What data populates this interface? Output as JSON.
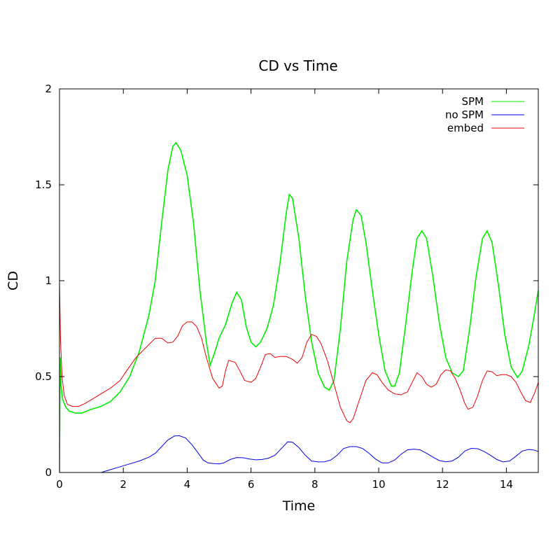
{
  "chart_data": {
    "type": "line",
    "title": "CD vs Time",
    "xlabel": "Time",
    "ylabel": "CD",
    "xlim": [
      0,
      15
    ],
    "ylim": [
      0,
      2
    ],
    "xticks": [
      0,
      2,
      4,
      6,
      8,
      10,
      12,
      14
    ],
    "yticks": [
      0,
      0.5,
      1,
      1.5,
      2
    ],
    "xtick_labels": [
      "0",
      "2",
      "4",
      "6",
      "8",
      "10",
      "12",
      "14"
    ],
    "ytick_labels": [
      "0",
      "0.5",
      "1",
      "1.5",
      "2"
    ],
    "grid": false,
    "legend_position": "top-right",
    "series": [
      {
        "name": "SPM",
        "color": "#00ee00",
        "points": [
          [
            0,
            0
          ],
          [
            0.02,
            0.6
          ],
          [
            0.05,
            0.45
          ],
          [
            0.1,
            0.38
          ],
          [
            0.2,
            0.34
          ],
          [
            0.3,
            0.32
          ],
          [
            0.5,
            0.31
          ],
          [
            0.7,
            0.31
          ],
          [
            1.0,
            0.33
          ],
          [
            1.3,
            0.345
          ],
          [
            1.6,
            0.37
          ],
          [
            1.9,
            0.42
          ],
          [
            2.2,
            0.5
          ],
          [
            2.5,
            0.63
          ],
          [
            2.8,
            0.82
          ],
          [
            3.0,
            1.0
          ],
          [
            3.2,
            1.3
          ],
          [
            3.4,
            1.58
          ],
          [
            3.55,
            1.7
          ],
          [
            3.65,
            1.72
          ],
          [
            3.8,
            1.68
          ],
          [
            4.0,
            1.55
          ],
          [
            4.2,
            1.3
          ],
          [
            4.4,
            0.95
          ],
          [
            4.6,
            0.68
          ],
          [
            4.72,
            0.56
          ],
          [
            4.85,
            0.62
          ],
          [
            5.0,
            0.7
          ],
          [
            5.2,
            0.77
          ],
          [
            5.4,
            0.88
          ],
          [
            5.55,
            0.94
          ],
          [
            5.7,
            0.9
          ],
          [
            5.85,
            0.76
          ],
          [
            6.0,
            0.68
          ],
          [
            6.15,
            0.655
          ],
          [
            6.3,
            0.68
          ],
          [
            6.5,
            0.75
          ],
          [
            6.7,
            0.87
          ],
          [
            6.9,
            1.08
          ],
          [
            7.1,
            1.35
          ],
          [
            7.2,
            1.45
          ],
          [
            7.3,
            1.43
          ],
          [
            7.5,
            1.22
          ],
          [
            7.7,
            0.92
          ],
          [
            7.9,
            0.68
          ],
          [
            8.1,
            0.52
          ],
          [
            8.3,
            0.445
          ],
          [
            8.45,
            0.43
          ],
          [
            8.6,
            0.48
          ],
          [
            8.8,
            0.75
          ],
          [
            9.0,
            1.1
          ],
          [
            9.2,
            1.32
          ],
          [
            9.3,
            1.37
          ],
          [
            9.45,
            1.34
          ],
          [
            9.6,
            1.2
          ],
          [
            9.8,
            0.95
          ],
          [
            10.0,
            0.72
          ],
          [
            10.2,
            0.53
          ],
          [
            10.4,
            0.45
          ],
          [
            10.5,
            0.45
          ],
          [
            10.65,
            0.52
          ],
          [
            10.85,
            0.78
          ],
          [
            11.05,
            1.05
          ],
          [
            11.2,
            1.22
          ],
          [
            11.35,
            1.26
          ],
          [
            11.5,
            1.22
          ],
          [
            11.7,
            1.02
          ],
          [
            11.9,
            0.78
          ],
          [
            12.1,
            0.6
          ],
          [
            12.3,
            0.52
          ],
          [
            12.5,
            0.5
          ],
          [
            12.65,
            0.53
          ],
          [
            12.85,
            0.75
          ],
          [
            13.05,
            1.02
          ],
          [
            13.25,
            1.22
          ],
          [
            13.4,
            1.26
          ],
          [
            13.55,
            1.2
          ],
          [
            13.75,
            0.98
          ],
          [
            13.95,
            0.72
          ],
          [
            14.15,
            0.55
          ],
          [
            14.35,
            0.495
          ],
          [
            14.5,
            0.53
          ],
          [
            14.7,
            0.66
          ],
          [
            14.85,
            0.8
          ],
          [
            15.0,
            0.95
          ]
        ]
      },
      {
        "name": "no SPM",
        "color": "#0000ee",
        "points": [
          [
            1.3,
            0
          ],
          [
            1.6,
            0.015
          ],
          [
            1.9,
            0.03
          ],
          [
            2.2,
            0.045
          ],
          [
            2.5,
            0.06
          ],
          [
            2.8,
            0.08
          ],
          [
            3.0,
            0.1
          ],
          [
            3.2,
            0.135
          ],
          [
            3.4,
            0.17
          ],
          [
            3.6,
            0.19
          ],
          [
            3.75,
            0.192
          ],
          [
            3.95,
            0.18
          ],
          [
            4.15,
            0.145
          ],
          [
            4.35,
            0.1
          ],
          [
            4.5,
            0.065
          ],
          [
            4.65,
            0.05
          ],
          [
            4.8,
            0.047
          ],
          [
            5.0,
            0.045
          ],
          [
            5.15,
            0.05
          ],
          [
            5.35,
            0.068
          ],
          [
            5.55,
            0.078
          ],
          [
            5.75,
            0.077
          ],
          [
            5.95,
            0.07
          ],
          [
            6.15,
            0.066
          ],
          [
            6.35,
            0.068
          ],
          [
            6.55,
            0.075
          ],
          [
            6.75,
            0.09
          ],
          [
            6.95,
            0.125
          ],
          [
            7.15,
            0.16
          ],
          [
            7.3,
            0.158
          ],
          [
            7.5,
            0.13
          ],
          [
            7.7,
            0.09
          ],
          [
            7.9,
            0.06
          ],
          [
            8.1,
            0.055
          ],
          [
            8.3,
            0.056
          ],
          [
            8.5,
            0.065
          ],
          [
            8.7,
            0.09
          ],
          [
            8.9,
            0.125
          ],
          [
            9.1,
            0.135
          ],
          [
            9.3,
            0.135
          ],
          [
            9.5,
            0.125
          ],
          [
            9.7,
            0.1
          ],
          [
            9.9,
            0.07
          ],
          [
            10.1,
            0.05
          ],
          [
            10.3,
            0.05
          ],
          [
            10.5,
            0.065
          ],
          [
            10.7,
            0.095
          ],
          [
            10.9,
            0.118
          ],
          [
            11.1,
            0.122
          ],
          [
            11.3,
            0.118
          ],
          [
            11.5,
            0.1
          ],
          [
            11.7,
            0.08
          ],
          [
            11.9,
            0.062
          ],
          [
            12.1,
            0.056
          ],
          [
            12.3,
            0.06
          ],
          [
            12.5,
            0.08
          ],
          [
            12.7,
            0.112
          ],
          [
            12.9,
            0.126
          ],
          [
            13.1,
            0.124
          ],
          [
            13.3,
            0.11
          ],
          [
            13.5,
            0.09
          ],
          [
            13.7,
            0.068
          ],
          [
            13.9,
            0.055
          ],
          [
            14.1,
            0.06
          ],
          [
            14.3,
            0.085
          ],
          [
            14.5,
            0.112
          ],
          [
            14.7,
            0.12
          ],
          [
            14.85,
            0.118
          ],
          [
            15.0,
            0.11
          ]
        ]
      },
      {
        "name": "embed",
        "color": "#ee0000",
        "points": [
          [
            0,
            1.0
          ],
          [
            0.03,
            0.7
          ],
          [
            0.08,
            0.5
          ],
          [
            0.15,
            0.4
          ],
          [
            0.25,
            0.355
          ],
          [
            0.4,
            0.345
          ],
          [
            0.6,
            0.345
          ],
          [
            0.8,
            0.36
          ],
          [
            1.0,
            0.38
          ],
          [
            1.3,
            0.41
          ],
          [
            1.6,
            0.44
          ],
          [
            1.9,
            0.48
          ],
          [
            2.1,
            0.53
          ],
          [
            2.4,
            0.6
          ],
          [
            2.7,
            0.65
          ],
          [
            3.0,
            0.7
          ],
          [
            3.2,
            0.7
          ],
          [
            3.4,
            0.675
          ],
          [
            3.55,
            0.68
          ],
          [
            3.7,
            0.71
          ],
          [
            3.85,
            0.765
          ],
          [
            4.0,
            0.785
          ],
          [
            4.15,
            0.785
          ],
          [
            4.3,
            0.76
          ],
          [
            4.45,
            0.7
          ],
          [
            4.6,
            0.6
          ],
          [
            4.8,
            0.49
          ],
          [
            5.0,
            0.44
          ],
          [
            5.1,
            0.45
          ],
          [
            5.2,
            0.53
          ],
          [
            5.3,
            0.585
          ],
          [
            5.5,
            0.575
          ],
          [
            5.65,
            0.53
          ],
          [
            5.8,
            0.48
          ],
          [
            6.0,
            0.47
          ],
          [
            6.15,
            0.49
          ],
          [
            6.3,
            0.55
          ],
          [
            6.45,
            0.615
          ],
          [
            6.6,
            0.62
          ],
          [
            6.75,
            0.6
          ],
          [
            6.9,
            0.605
          ],
          [
            7.1,
            0.605
          ],
          [
            7.3,
            0.59
          ],
          [
            7.45,
            0.57
          ],
          [
            7.6,
            0.6
          ],
          [
            7.75,
            0.68
          ],
          [
            7.9,
            0.72
          ],
          [
            8.05,
            0.71
          ],
          [
            8.2,
            0.67
          ],
          [
            8.4,
            0.58
          ],
          [
            8.6,
            0.46
          ],
          [
            8.8,
            0.34
          ],
          [
            9.0,
            0.27
          ],
          [
            9.1,
            0.26
          ],
          [
            9.2,
            0.28
          ],
          [
            9.4,
            0.38
          ],
          [
            9.6,
            0.48
          ],
          [
            9.8,
            0.52
          ],
          [
            9.95,
            0.51
          ],
          [
            10.1,
            0.47
          ],
          [
            10.3,
            0.43
          ],
          [
            10.5,
            0.41
          ],
          [
            10.7,
            0.405
          ],
          [
            10.9,
            0.42
          ],
          [
            11.05,
            0.47
          ],
          [
            11.2,
            0.52
          ],
          [
            11.35,
            0.5
          ],
          [
            11.5,
            0.46
          ],
          [
            11.65,
            0.445
          ],
          [
            11.8,
            0.46
          ],
          [
            11.95,
            0.51
          ],
          [
            12.1,
            0.535
          ],
          [
            12.25,
            0.53
          ],
          [
            12.4,
            0.49
          ],
          [
            12.55,
            0.43
          ],
          [
            12.7,
            0.36
          ],
          [
            12.8,
            0.33
          ],
          [
            12.95,
            0.34
          ],
          [
            13.1,
            0.4
          ],
          [
            13.25,
            0.48
          ],
          [
            13.4,
            0.53
          ],
          [
            13.55,
            0.525
          ],
          [
            13.7,
            0.505
          ],
          [
            13.85,
            0.51
          ],
          [
            14.0,
            0.51
          ],
          [
            14.15,
            0.5
          ],
          [
            14.3,
            0.47
          ],
          [
            14.45,
            0.42
          ],
          [
            14.6,
            0.375
          ],
          [
            14.75,
            0.365
          ],
          [
            14.9,
            0.42
          ],
          [
            15.0,
            0.47
          ]
        ]
      }
    ]
  }
}
